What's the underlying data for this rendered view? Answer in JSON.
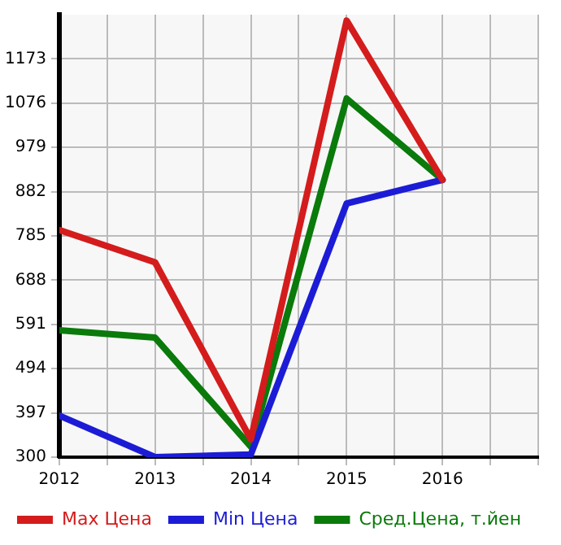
{
  "chart_data": {
    "type": "line",
    "x": [
      2012,
      2013,
      2014,
      2015,
      2016
    ],
    "series": [
      {
        "name": "Max Цена",
        "color": "#d41c1c",
        "values": [
          798,
          727,
          339,
          1257,
          908
        ]
      },
      {
        "name": "Min Цена",
        "color": "#1c1cd6",
        "values": [
          391,
          300,
          306,
          856,
          908
        ]
      },
      {
        "name": "Сред.Цена, т.йен",
        "color": "#0a7a0a",
        "values": [
          578,
          562,
          323,
          1086,
          908
        ]
      }
    ],
    "xlim": [
      2012,
      2017
    ],
    "xticks": [
      2012,
      {
        "value": 2012.5,
        "label": null
      },
      2013,
      {
        "value": 2013.5,
        "label": null
      },
      2014,
      {
        "value": 2014.5,
        "label": null
      },
      2015,
      {
        "value": 2015.5,
        "label": null
      },
      2016,
      {
        "value": 2016.5,
        "label": null
      },
      {
        "value": 2017,
        "label": null
      }
    ],
    "ylim": [
      300,
      1270
    ],
    "yticks": [
      300,
      397,
      494,
      591,
      688,
      785,
      882,
      979,
      1076,
      1173
    ],
    "grid": true,
    "legend": "bottom",
    "marker": "none",
    "line_style": "solid"
  }
}
